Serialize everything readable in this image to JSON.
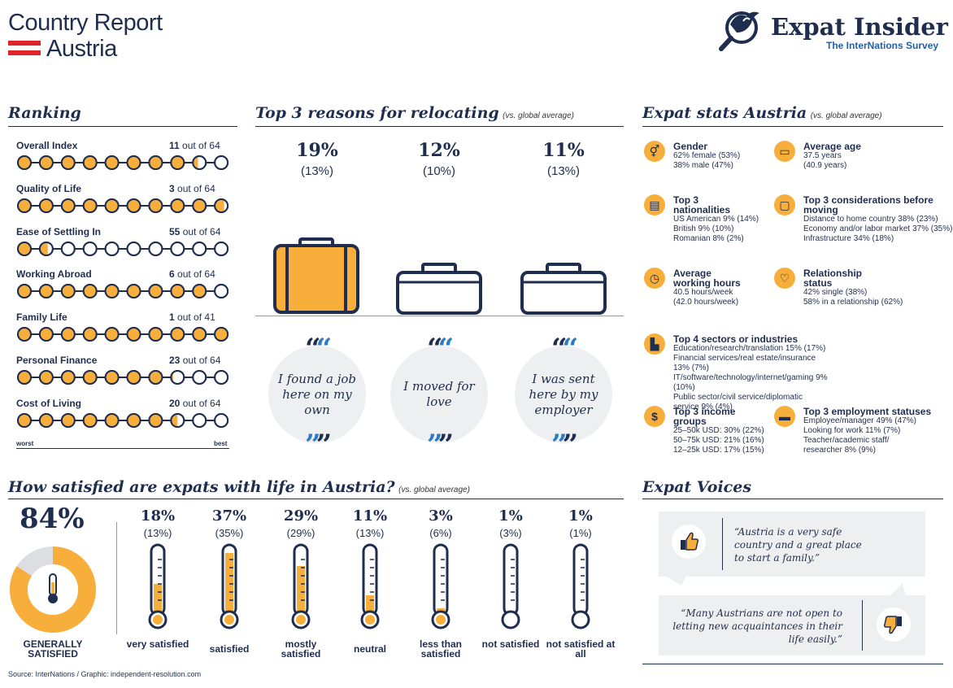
{
  "header": {
    "title_line1": "Country Report",
    "title_line2": "Austria",
    "brand": "Expat Insider",
    "brand_sub": "The InterNations Survey",
    "accent": "#f7ae3b",
    "navy": "#1f2d4e"
  },
  "ranking": {
    "title": "Ranking",
    "worst": "worst",
    "best": "best",
    "items": [
      {
        "label": "Overall Index",
        "rank": "11",
        "suffix": "out of 64",
        "filled": 8.4
      },
      {
        "label": "Quality of Life",
        "rank": "3",
        "suffix": "out of 64",
        "filled": 9.7
      },
      {
        "label": "Ease of Settling In",
        "rank": "55",
        "suffix": "out of 64",
        "filled": 1.6
      },
      {
        "label": "Working Abroad",
        "rank": "6",
        "suffix": "out of 64",
        "filled": 9.1
      },
      {
        "label": "Family Life",
        "rank": "1",
        "suffix": "out of 41",
        "filled": 10
      },
      {
        "label": "Personal Finance",
        "rank": "23",
        "suffix": "out of 64",
        "filled": 7.2
      },
      {
        "label": "Cost of Living",
        "rank": "20",
        "suffix": "out of 64",
        "filled": 7.5
      }
    ]
  },
  "reasons": {
    "title": "Top 3 reasons for relocating",
    "subtitle": "(vs. global average)",
    "items": [
      {
        "pct": "19%",
        "global": "(13%)",
        "text": "I found a job here on my own",
        "highlight": true
      },
      {
        "pct": "12%",
        "global": "(10%)",
        "text": "I moved for love",
        "highlight": false
      },
      {
        "pct": "11%",
        "global": "(13%)",
        "text": "I was sent here by my employer",
        "highlight": false
      }
    ]
  },
  "stats": {
    "title": "Expat stats Austria",
    "subtitle": "(vs. global average)",
    "blocks": [
      {
        "icon": "gender-icon",
        "title": "Gender",
        "lines": [
          "62% female (53%)",
          "38% male (47%)"
        ]
      },
      {
        "icon": "cake-icon",
        "title": "Average age",
        "lines": [
          "37.5 years",
          "(40.9 years)"
        ]
      },
      {
        "icon": "passport-icon",
        "title": "Top 3 nationalities",
        "lines": [
          "US American 9% (14%)",
          "British 9% (10%)",
          "Romanian 8% (2%)"
        ]
      },
      {
        "icon": "chat-icon",
        "title": "Top 3 considerations before moving",
        "lines": [
          "Distance to home country 38% (23%)",
          "Economy and/or labor market 37% (35%)",
          "Infrastructure 34% (18%)"
        ]
      },
      {
        "icon": "clock-icon",
        "title": "Average working hours",
        "lines": [
          "40.5 hours/week",
          "(42.0 hours/week)"
        ]
      },
      {
        "icon": "heart-icon",
        "title": "Relationship status",
        "lines": [
          "42% single (38%)",
          "58% in a relationship (62%)"
        ]
      },
      {
        "icon": "factory-icon",
        "title": "Top 4 sectors or industries",
        "lines": [
          "Education/research/translation 15% (17%)",
          "Financial services/real estate/insurance 13% (7%)",
          "IT/software/technology/internet/gaming 9% (10%)",
          "Public sector/civil service/diplomatic service 9% (4%)"
        ]
      },
      {
        "icon": "money-icon",
        "title": "Top 3 income groups",
        "lines": [
          "25–50k USD: 30% (22%)",
          "50–75k USD: 21% (16%)",
          "12–25k USD: 17% (15%)"
        ]
      },
      {
        "icon": "briefcase-icon",
        "title": "Top 3 employment statuses",
        "lines": [
          "Employee/manager 49% (47%)",
          "Looking for work 11% (7%)",
          "Teacher/academic staff/",
          "researcher 8% (9%)"
        ]
      }
    ]
  },
  "satisfaction": {
    "title": "How satisfied are expats with life in Austria?",
    "subtitle": "(vs. global average)",
    "overall_pct": "84%",
    "overall_value": 84,
    "overall_label": "GENERALLY SATISFIED",
    "items": [
      {
        "pct": "18%",
        "global": "(13%)",
        "label": "very satisfied",
        "value": 18
      },
      {
        "pct": "37%",
        "global": "(35%)",
        "label": "satisfied",
        "value": 37
      },
      {
        "pct": "29%",
        "global": "(29%)",
        "label": "mostly satisfied",
        "value": 29
      },
      {
        "pct": "11%",
        "global": "(13%)",
        "label": "neutral",
        "value": 11
      },
      {
        "pct": "3%",
        "global": "(6%)",
        "label": "less than satisfied",
        "value": 3
      },
      {
        "pct": "1%",
        "global": "(3%)",
        "label": "not satisfied",
        "value": 1
      },
      {
        "pct": "1%",
        "global": "(1%)",
        "label": "not satisfied at all",
        "value": 1
      }
    ]
  },
  "voices": {
    "title": "Expat Voices",
    "quote1": "“Austria is a very safe country and a great place to start a family.”",
    "quote2": "“Many Austrians are not open to letting new acquaintances in their life easily.”"
  },
  "source": "Source: InterNations / Graphic: independent-resolution.com"
}
